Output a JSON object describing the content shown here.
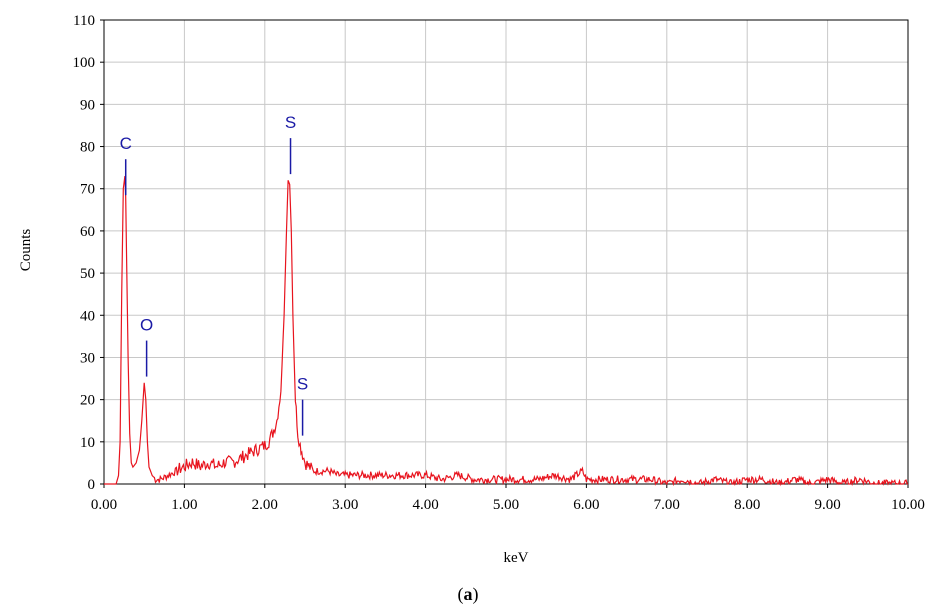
{
  "chart_data": {
    "type": "line",
    "title": "",
    "xlabel": "keV",
    "ylabel": "Counts",
    "xlim": [
      0,
      10
    ],
    "ylim": [
      0,
      110
    ],
    "x_ticks": [
      "0.00",
      "1.00",
      "2.00",
      "3.00",
      "4.00",
      "5.00",
      "6.00",
      "7.00",
      "8.00",
      "9.00",
      "10.00"
    ],
    "y_ticks": [
      "0",
      "10",
      "20",
      "30",
      "40",
      "50",
      "60",
      "70",
      "80",
      "90",
      "100",
      "110"
    ],
    "grid": true,
    "line_color": "#e8141e",
    "marker_color": "#1a1aa6",
    "series": [
      {
        "x": [
          0.0,
          0.1,
          0.15,
          0.18,
          0.2,
          0.22,
          0.24,
          0.26,
          0.27,
          0.28,
          0.3,
          0.32,
          0.34,
          0.36,
          0.4,
          0.44,
          0.47,
          0.5,
          0.52,
          0.54,
          0.56,
          0.6,
          0.64,
          0.7,
          0.8,
          0.9,
          1.0,
          1.1,
          1.2,
          1.3,
          1.4,
          1.5,
          1.6,
          1.7,
          1.8,
          1.9,
          2.0,
          2.05,
          2.1,
          2.15,
          2.2,
          2.24,
          2.27,
          2.29,
          2.31,
          2.33,
          2.35,
          2.38,
          2.41,
          2.44,
          2.47,
          2.5,
          2.55,
          2.6,
          2.7,
          2.8,
          2.9,
          3.0,
          3.2,
          3.4,
          3.6,
          3.8,
          4.0,
          4.2,
          4.4,
          4.6,
          4.8,
          5.0,
          5.2,
          5.4,
          5.6,
          5.8,
          5.95,
          6.0,
          6.2,
          6.4,
          6.6,
          6.8,
          7.0,
          7.2,
          7.4,
          7.6,
          7.8,
          8.0,
          8.2,
          8.4,
          8.6,
          8.8,
          9.0,
          9.2,
          9.4,
          9.6,
          9.8,
          10.0
        ],
        "y": [
          0,
          0,
          0,
          2,
          10,
          45,
          70,
          73,
          68,
          55,
          30,
          12,
          5,
          4,
          5,
          8,
          15,
          24,
          20,
          10,
          4,
          2,
          1,
          1,
          2,
          3,
          4,
          5,
          4,
          5,
          4,
          5,
          5,
          6,
          7,
          8,
          9,
          10,
          12,
          15,
          22,
          40,
          60,
          72,
          71,
          60,
          40,
          20,
          12,
          9,
          7,
          5,
          4,
          3,
          3,
          3,
          2,
          2,
          2,
          2,
          2,
          2,
          2,
          1,
          2,
          1,
          1,
          1,
          1,
          1,
          2,
          1,
          3,
          1,
          1,
          1,
          1,
          1,
          0,
          1,
          0,
          1,
          0,
          1,
          1,
          0,
          1,
          0,
          1,
          0,
          1,
          0,
          0,
          0
        ]
      }
    ],
    "annotations": [
      {
        "label": "C",
        "x": 0.27,
        "y": 77
      },
      {
        "label": "O",
        "x": 0.53,
        "y": 34
      },
      {
        "label": "S",
        "x": 2.32,
        "y": 82
      },
      {
        "label": "S",
        "x": 2.47,
        "y": 20
      }
    ]
  },
  "caption": {
    "open": "(",
    "letter": "a",
    "close": ")"
  }
}
